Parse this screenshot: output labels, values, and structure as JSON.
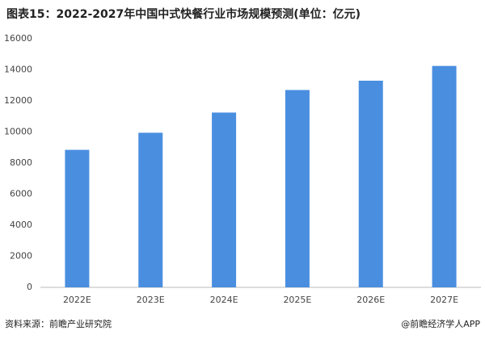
{
  "chart_data": {
    "type": "bar",
    "title": "图表15：2022-2027年中国中式快餐行业市场规模预测(单位：亿元)",
    "categories": [
      "2022E",
      "2023E",
      "2024E",
      "2025E",
      "2026E",
      "2027E"
    ],
    "values": [
      8850,
      9950,
      11250,
      12700,
      13300,
      14250
    ],
    "color": "#4a8ee0",
    "ylim": [
      0,
      16000
    ],
    "yticks": [
      0,
      2000,
      4000,
      6000,
      8000,
      10000,
      12000,
      14000,
      16000
    ],
    "grid": false,
    "source": "资料来源：前瞻产业研究院",
    "credit": "@前瞻经济学人APP"
  }
}
